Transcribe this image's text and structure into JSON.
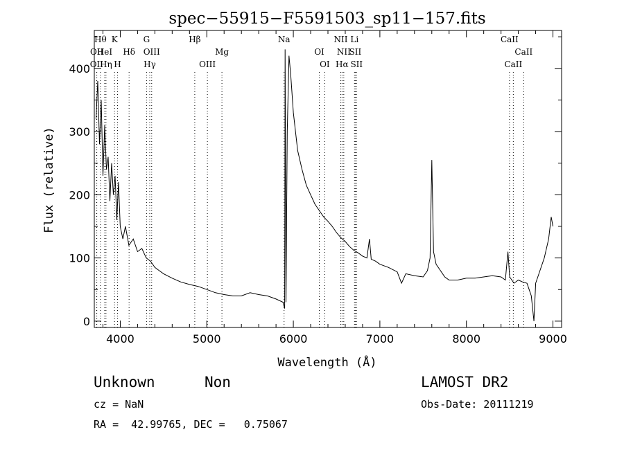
{
  "chart_data": {
    "type": "line",
    "title": "spec−55915−F5591503_sp11−157.fits",
    "xlabel": "Wavelength (Å)",
    "ylabel": "Flux (relative)",
    "xlim": [
      3700,
      9100
    ],
    "ylim": [
      -10,
      460
    ],
    "x_ticks": [
      4000,
      5000,
      6000,
      7000,
      8000,
      9000
    ],
    "x_tick_labels": [
      "4000",
      "5000",
      "6000",
      "7000",
      "8000",
      "9000"
    ],
    "y_ticks": [
      0,
      100,
      200,
      300,
      400
    ],
    "y_tick_labels": [
      "0",
      "100",
      "200",
      "300",
      "400"
    ],
    "grid": false,
    "series": [
      {
        "points": [
          [
            3720,
            320
          ],
          [
            3740,
            380
          ],
          [
            3760,
            280
          ],
          [
            3780,
            350
          ],
          [
            3800,
            230
          ],
          [
            3820,
            310
          ],
          [
            3840,
            240
          ],
          [
            3860,
            260
          ],
          [
            3880,
            190
          ],
          [
            3900,
            250
          ],
          [
            3920,
            200
          ],
          [
            3940,
            230
          ],
          [
            3960,
            160
          ],
          [
            3980,
            220
          ],
          [
            4000,
            150
          ],
          [
            4030,
            130
          ],
          [
            4060,
            150
          ],
          [
            4100,
            120
          ],
          [
            4150,
            130
          ],
          [
            4200,
            110
          ],
          [
            4250,
            115
          ],
          [
            4300,
            100
          ],
          [
            4350,
            95
          ],
          [
            4400,
            85
          ],
          [
            4450,
            80
          ],
          [
            4500,
            75
          ],
          [
            4600,
            68
          ],
          [
            4700,
            62
          ],
          [
            4800,
            58
          ],
          [
            4900,
            55
          ],
          [
            5000,
            50
          ],
          [
            5100,
            45
          ],
          [
            5200,
            42
          ],
          [
            5300,
            40
          ],
          [
            5400,
            40
          ],
          [
            5500,
            45
          ],
          [
            5600,
            42
          ],
          [
            5700,
            40
          ],
          [
            5800,
            35
          ],
          [
            5880,
            30
          ],
          [
            5900,
            20
          ],
          [
            5905,
            430
          ],
          [
            5915,
            30
          ],
          [
            5930,
            300
          ],
          [
            5950,
            420
          ],
          [
            5970,
            390
          ],
          [
            6000,
            330
          ],
          [
            6050,
            270
          ],
          [
            6100,
            240
          ],
          [
            6150,
            215
          ],
          [
            6200,
            200
          ],
          [
            6250,
            185
          ],
          [
            6300,
            175
          ],
          [
            6350,
            165
          ],
          [
            6400,
            158
          ],
          [
            6450,
            150
          ],
          [
            6500,
            140
          ],
          [
            6550,
            132
          ],
          [
            6600,
            126
          ],
          [
            6650,
            118
          ],
          [
            6700,
            112
          ],
          [
            6750,
            108
          ],
          [
            6800,
            103
          ],
          [
            6850,
            100
          ],
          [
            6880,
            130
          ],
          [
            6900,
            98
          ],
          [
            6950,
            95
          ],
          [
            7000,
            90
          ],
          [
            7100,
            85
          ],
          [
            7200,
            78
          ],
          [
            7250,
            60
          ],
          [
            7300,
            75
          ],
          [
            7400,
            72
          ],
          [
            7500,
            70
          ],
          [
            7550,
            80
          ],
          [
            7580,
            100
          ],
          [
            7600,
            255
          ],
          [
            7620,
            110
          ],
          [
            7650,
            90
          ],
          [
            7700,
            80
          ],
          [
            7750,
            70
          ],
          [
            7800,
            65
          ],
          [
            7900,
            65
          ],
          [
            8000,
            68
          ],
          [
            8100,
            68
          ],
          [
            8200,
            70
          ],
          [
            8300,
            72
          ],
          [
            8400,
            70
          ],
          [
            8450,
            65
          ],
          [
            8480,
            110
          ],
          [
            8500,
            70
          ],
          [
            8550,
            60
          ],
          [
            8600,
            65
          ],
          [
            8650,
            62
          ],
          [
            8700,
            60
          ],
          [
            8750,
            40
          ],
          [
            8780,
            0
          ],
          [
            8800,
            60
          ],
          [
            8850,
            80
          ],
          [
            8900,
            100
          ],
          [
            8950,
            130
          ],
          [
            8980,
            165
          ],
          [
            9000,
            150
          ]
        ]
      }
    ],
    "line_markers": [
      {
        "x": 3771,
        "label": "Hθ",
        "row": 0
      },
      {
        "x": 3729,
        "label": "OII",
        "row": 1
      },
      {
        "x": 3727,
        "label": "OII",
        "row": 2
      },
      {
        "x": 3820,
        "label": "HeI",
        "row": 1
      },
      {
        "x": 3835,
        "label": "Hη",
        "row": 2
      },
      {
        "x": 3934,
        "label": "K",
        "row": 0
      },
      {
        "x": 3968,
        "label": "H",
        "row": 2
      },
      {
        "x": 4102,
        "label": "Hδ",
        "row": 1
      },
      {
        "x": 4304,
        "label": "G",
        "row": 0
      },
      {
        "x": 4363,
        "label": "OIII",
        "row": 1
      },
      {
        "x": 4341,
        "label": "Hγ",
        "row": 2
      },
      {
        "x": 4861,
        "label": "Hβ",
        "row": 0
      },
      {
        "x": 5007,
        "label": "OIII",
        "row": 2
      },
      {
        "x": 5175,
        "label": "Mg",
        "row": 1
      },
      {
        "x": 5893,
        "label": "Na",
        "row": 0
      },
      {
        "x": 6300,
        "label": "OI",
        "row": 1
      },
      {
        "x": 6363,
        "label": "OI",
        "row": 2
      },
      {
        "x": 6548,
        "label": "NII",
        "row": 0
      },
      {
        "x": 6583,
        "label": "NII",
        "row": 1
      },
      {
        "x": 6563,
        "label": "Hα",
        "row": 2
      },
      {
        "x": 6707,
        "label": "Li",
        "row": 0
      },
      {
        "x": 6716,
        "label": "SII",
        "row": 1
      },
      {
        "x": 6731,
        "label": "SII",
        "row": 2
      },
      {
        "x": 8498,
        "label": "CaII",
        "row": 0
      },
      {
        "x": 8542,
        "label": "CaII",
        "row": 2
      },
      {
        "x": 8662,
        "label": "CaII",
        "row": 1
      }
    ]
  },
  "info": {
    "class": "Unknown",
    "subclass": "Non",
    "cz": "cz = NaN",
    "radec": "RA =  42.99765, DEC =   0.75067",
    "survey": "LAMOST DR2",
    "obs_date": "Obs-Date: 20111219"
  }
}
